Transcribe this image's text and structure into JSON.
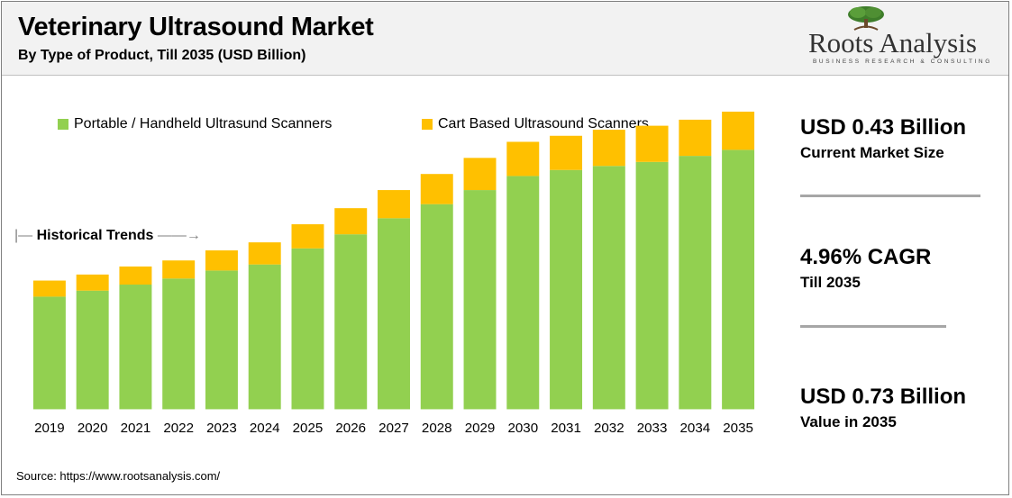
{
  "header": {
    "title": "Veterinary Ultrasound Market",
    "subtitle": "By Type of Product, Till 2035 (USD Billion)"
  },
  "logo": {
    "name": "Roots Analysis",
    "tagline": "BUSINESS RESEARCH & CONSULTING",
    "icon": "tree-icon"
  },
  "annotation": {
    "historical_trends": "Historical Trends"
  },
  "kpis": [
    {
      "value": "USD 0.43 Billion",
      "label": "Current Market Size"
    },
    {
      "value": "4.96% CAGR",
      "label": "Till 2035"
    },
    {
      "value": "USD 0.73 Billion",
      "label": "Value in 2035"
    }
  ],
  "source": "Source: https://www.rootsanalysis.com/",
  "colors": {
    "portable": "#92d050",
    "cart": "#ffc000",
    "separator": "#a6a6a6"
  },
  "chart_data": {
    "type": "bar",
    "stacked": true,
    "categories": [
      "2019",
      "2020",
      "2021",
      "2022",
      "2023",
      "2024",
      "2025",
      "2026",
      "2027",
      "2028",
      "2029",
      "2030",
      "2031",
      "2032",
      "2033",
      "2034",
      "2035"
    ],
    "series": [
      {
        "name": "Portable / Handheld Ultrasund Scanners",
        "color": "#92d050",
        "values": [
          0.28,
          0.295,
          0.31,
          0.325,
          0.345,
          0.36,
          0.4,
          0.435,
          0.475,
          0.51,
          0.545,
          0.58,
          0.595,
          0.605,
          0.615,
          0.63,
          0.645
        ]
      },
      {
        "name": "Cart Based Ultrasound Scanners",
        "color": "#ffc000",
        "values": [
          0.04,
          0.04,
          0.045,
          0.045,
          0.05,
          0.055,
          0.06,
          0.065,
          0.07,
          0.075,
          0.08,
          0.085,
          0.085,
          0.09,
          0.09,
          0.09,
          0.095
        ]
      }
    ],
    "ylim": [
      0,
      0.8
    ],
    "grid": false,
    "legend": "top"
  }
}
